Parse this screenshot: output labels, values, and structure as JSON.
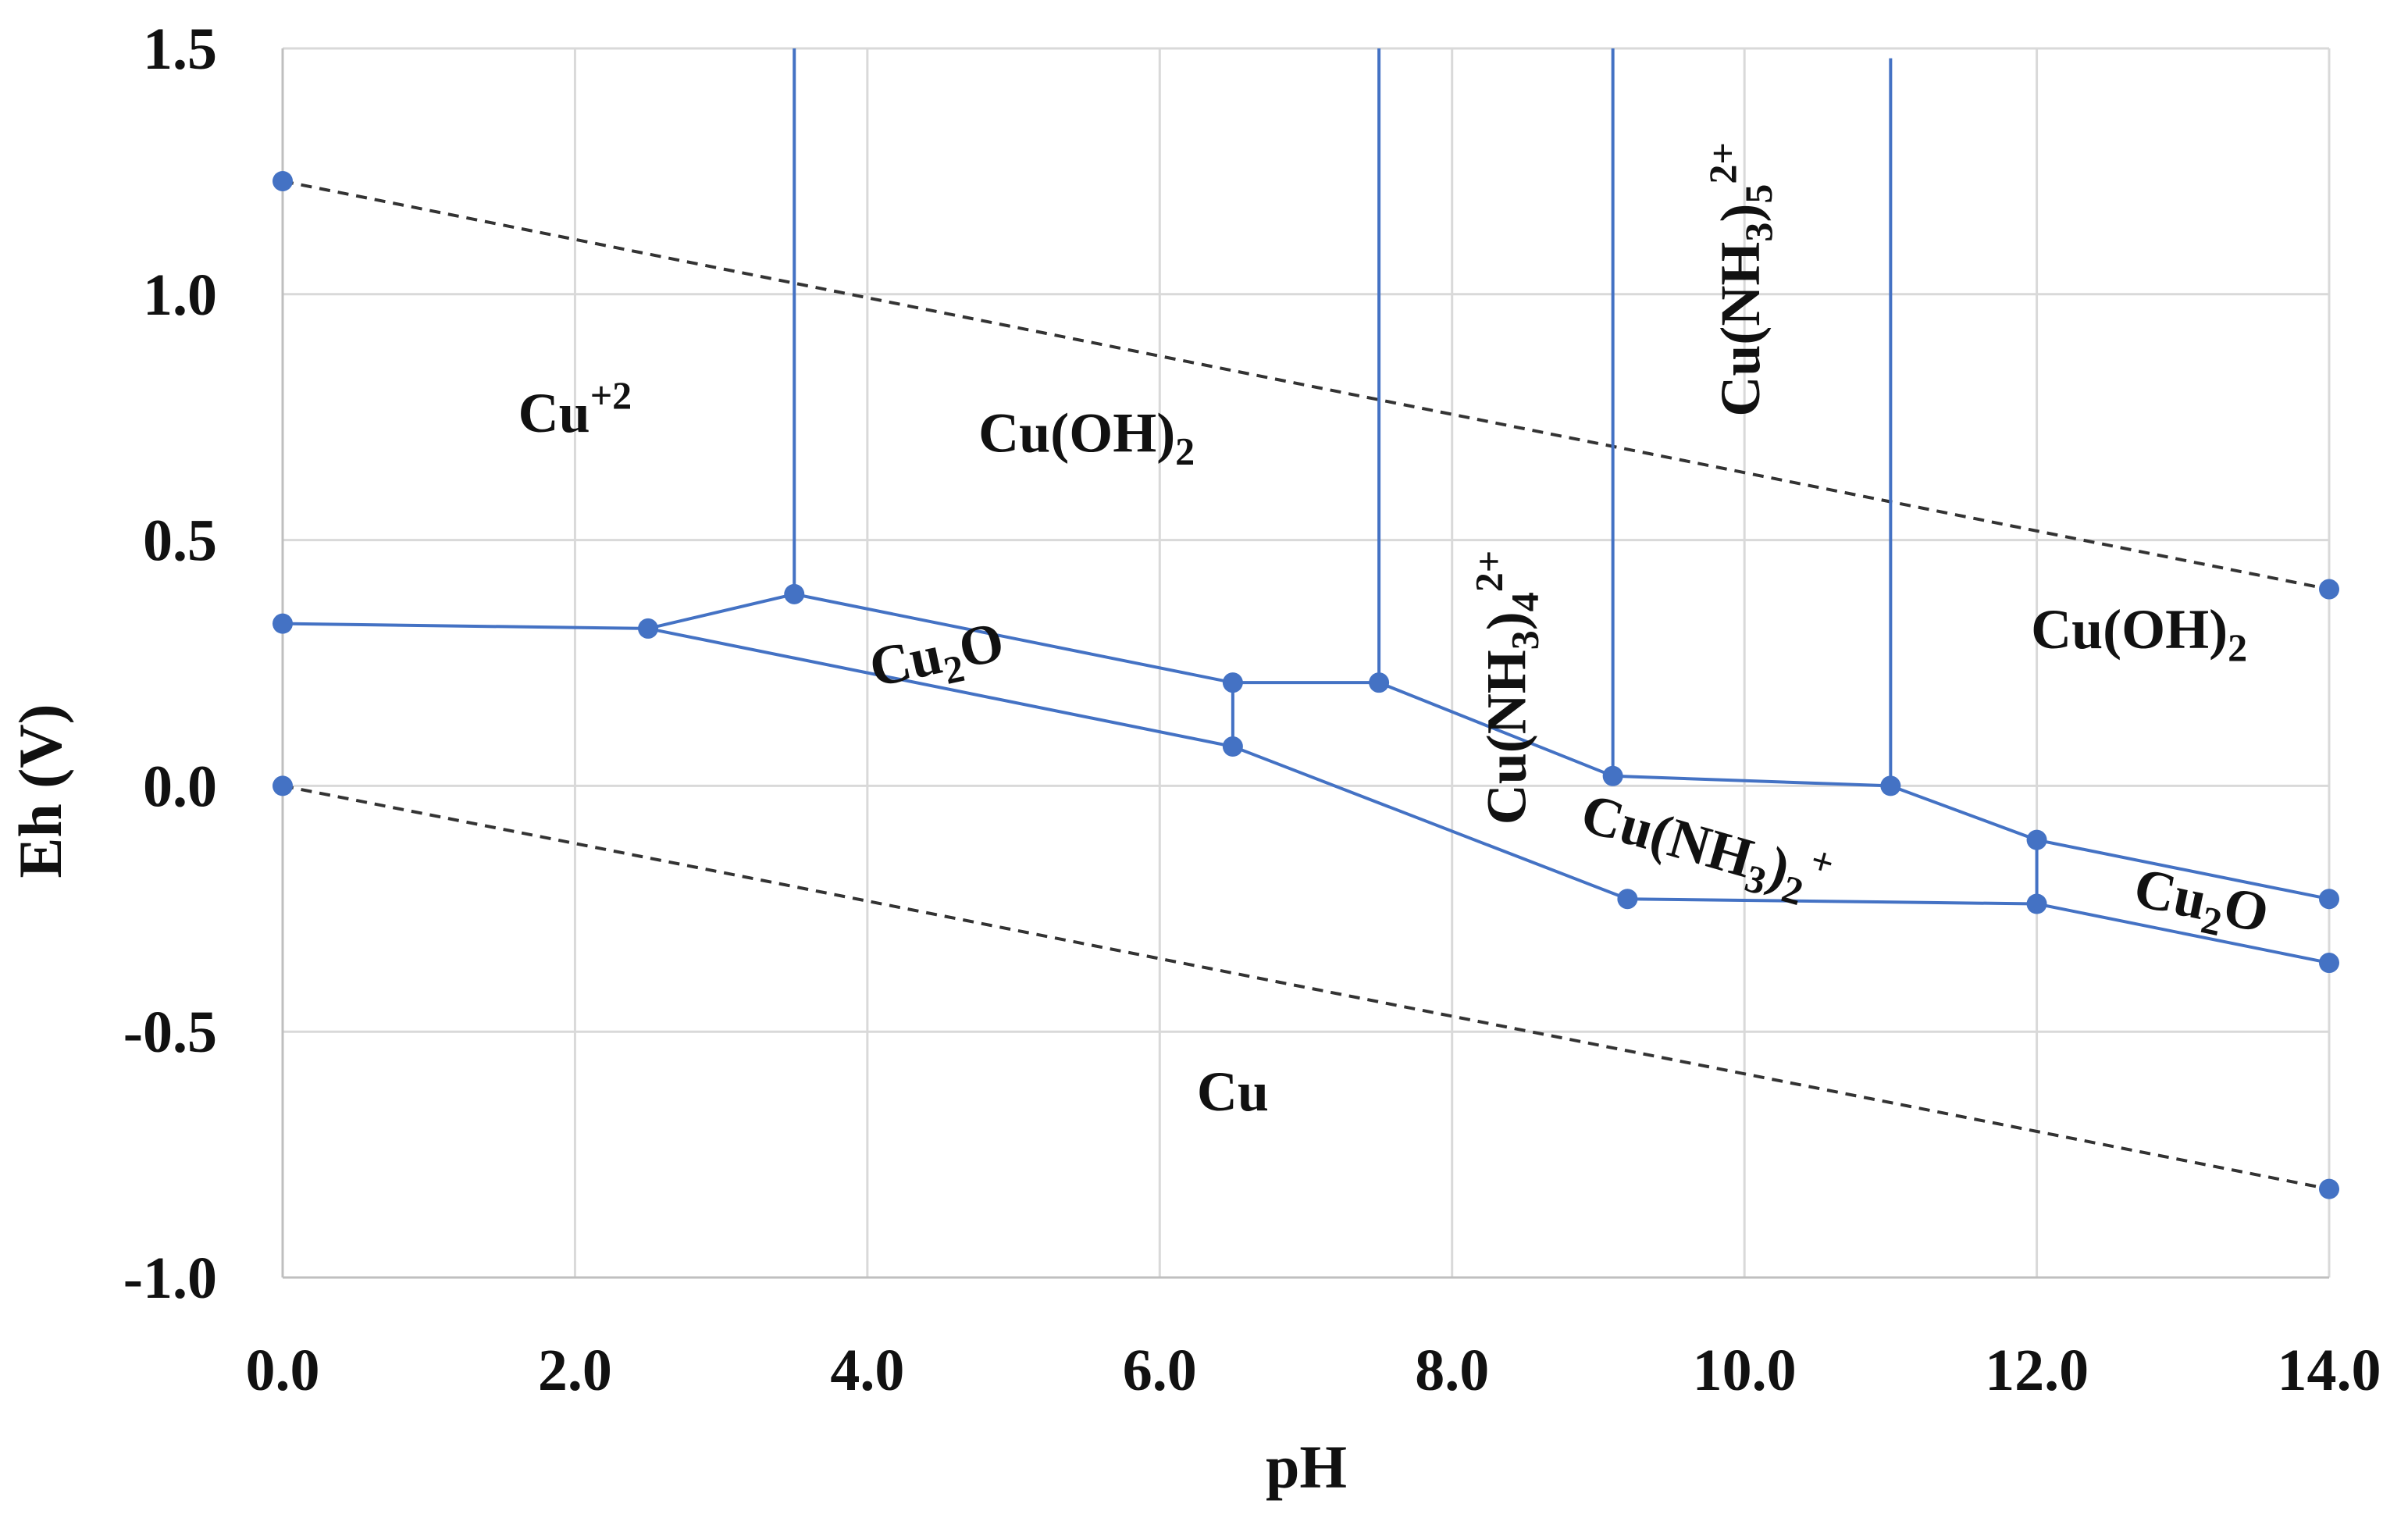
{
  "chart_data": {
    "type": "line",
    "title": "",
    "xlabel": "pH",
    "ylabel": "Eh (V)",
    "xlim": [
      0,
      14
    ],
    "ylim": [
      -1.0,
      1.5
    ],
    "xticks": [
      0,
      2,
      4,
      6,
      8,
      10,
      12,
      14
    ],
    "yticks": [
      -1.0,
      -0.5,
      0.0,
      0.5,
      1.0,
      1.5
    ],
    "xtick_labels": [
      "0.0",
      "2.0",
      "4.0",
      "6.0",
      "8.0",
      "10.0",
      "12.0",
      "14.0"
    ],
    "ytick_labels": [
      "-1.0",
      "-0.5",
      "0.0",
      "0.5",
      "1.0",
      "1.5"
    ],
    "grid": true,
    "colors": {
      "boundary": "#4472c4",
      "water": "#333333",
      "grid": "#d9d9d9"
    },
    "water_lines": [
      {
        "name": "upper-water-line",
        "points": [
          [
            0,
            1.23
          ],
          [
            14,
            0.4
          ]
        ]
      },
      {
        "name": "lower-water-line",
        "points": [
          [
            0,
            0.0
          ],
          [
            14,
            -0.82
          ]
        ]
      }
    ],
    "boundary_lines": [
      {
        "name": "cu2o-upper-boundary",
        "points": [
          [
            0,
            0.33
          ],
          [
            2.5,
            0.32
          ],
          [
            3.5,
            0.39
          ],
          [
            6.5,
            0.21
          ],
          [
            7.5,
            0.21
          ],
          [
            9.1,
            0.02
          ],
          [
            11.0,
            0.0
          ],
          [
            12.0,
            -0.11
          ],
          [
            14.0,
            -0.23
          ]
        ]
      },
      {
        "name": "cu2o-lower-boundary",
        "points": [
          [
            2.5,
            0.32
          ],
          [
            6.5,
            0.08
          ],
          [
            9.2,
            -0.23
          ],
          [
            12.0,
            -0.24
          ],
          [
            14.0,
            -0.36
          ]
        ]
      },
      {
        "name": "cu2o-vertical-6-5",
        "points": [
          [
            6.5,
            0.21
          ],
          [
            6.5,
            0.08
          ]
        ]
      },
      {
        "name": "cu2o-vertical-12",
        "points": [
          [
            12.0,
            -0.11
          ],
          [
            12.0,
            -0.24
          ]
        ]
      },
      {
        "name": "vertical-ph-3-5",
        "points": [
          [
            3.5,
            0.39
          ],
          [
            3.5,
            1.5
          ]
        ]
      },
      {
        "name": "vertical-ph-7-5",
        "points": [
          [
            7.5,
            0.21
          ],
          [
            7.5,
            1.5
          ]
        ]
      },
      {
        "name": "vertical-ph-9-1",
        "points": [
          [
            9.1,
            0.02
          ],
          [
            9.1,
            1.5
          ]
        ]
      },
      {
        "name": "vertical-ph-11",
        "points": [
          [
            11.0,
            0.0
          ],
          [
            11.0,
            1.48
          ]
        ]
      }
    ],
    "markers": [
      [
        0,
        1.23
      ],
      [
        14,
        0.4
      ],
      [
        0,
        0.0
      ],
      [
        14,
        -0.82
      ],
      [
        0,
        0.33
      ],
      [
        2.5,
        0.32
      ],
      [
        3.5,
        0.39
      ],
      [
        6.5,
        0.21
      ],
      [
        6.5,
        0.08
      ],
      [
        7.5,
        0.21
      ],
      [
        9.1,
        0.02
      ],
      [
        9.2,
        -0.23
      ],
      [
        11.0,
        0.0
      ],
      [
        12.0,
        -0.11
      ],
      [
        12.0,
        -0.24
      ],
      [
        14.0,
        -0.23
      ],
      [
        14.0,
        -0.36
      ]
    ],
    "regions": [
      {
        "name": "region-cu2plus",
        "base": "Cu",
        "sup": "+2",
        "at": [
          2.0,
          0.72
        ]
      },
      {
        "name": "region-cuoh2-left",
        "base": "Cu(OH)",
        "sub": "2",
        "at": [
          5.5,
          0.68
        ]
      },
      {
        "name": "region-cu2o-left",
        "base": "Cu",
        "sub": "2",
        "tail": "O",
        "at": [
          4.5,
          0.23
        ],
        "rotate": -12
      },
      {
        "name": "region-cunh3-4",
        "base": "Cu(NH",
        "sub": "3",
        "mid": ")",
        "sub2": "4",
        "sup": "2+",
        "at": [
          8.5,
          0.2
        ],
        "rotate": -90
      },
      {
        "name": "region-cunh3-5",
        "base": "Cu(NH",
        "sub": "3",
        "mid": ")",
        "sub2": "5",
        "sup": "2+",
        "at": [
          10.1,
          1.03
        ],
        "rotate": -90
      },
      {
        "name": "region-cunh3-2",
        "base": "Cu(NH",
        "sub": "3",
        "mid": ")",
        "sub2": "2",
        "sup": "+",
        "at": [
          9.7,
          -0.16
        ],
        "rotate": 16
      },
      {
        "name": "region-cuoh2-right",
        "base": "Cu(OH)",
        "sub": "2",
        "at": [
          12.7,
          0.28
        ]
      },
      {
        "name": "region-cu2o-right",
        "base": "Cu",
        "sub": "2",
        "tail": "O",
        "at": [
          13.1,
          -0.27
        ],
        "rotate": 12
      },
      {
        "name": "region-cu",
        "base": "Cu",
        "at": [
          6.5,
          -0.66
        ]
      }
    ]
  }
}
